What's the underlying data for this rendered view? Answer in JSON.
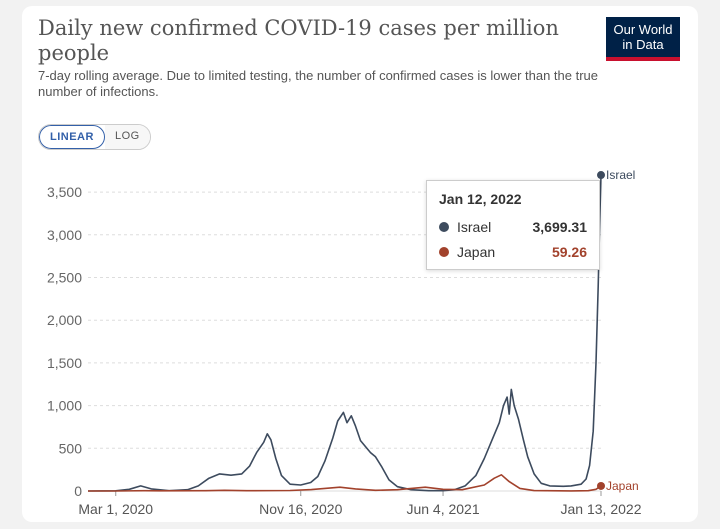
{
  "header": {
    "title": "Daily new confirmed COVID-19 cases per million people",
    "subtitle": "7-day rolling average. Due to limited testing, the number of confirmed cases is lower than the true number of infections.",
    "logo_line1": "Our World",
    "logo_line2": "in Data"
  },
  "scale_toggle": {
    "linear_label": "LINEAR",
    "log_label": "LOG",
    "selected": "LINEAR"
  },
  "tooltip": {
    "date": "Jan 12, 2022",
    "rows": [
      {
        "name": "Israel",
        "value": "3,699.31",
        "color": "#3d4b5e"
      },
      {
        "name": "Japan",
        "value": "59.26",
        "color": "#a2422c"
      }
    ]
  },
  "colors": {
    "israel": "#3d4b5e",
    "japan": "#a2422c",
    "grid": "#dddddd",
    "axis_text": "#666666",
    "logo_bg": "#002147",
    "logo_accent": "#c8102e"
  },
  "chart_data": {
    "type": "line",
    "title": "Daily new confirmed COVID-19 cases per million people",
    "xlabel": "",
    "ylabel": "",
    "x_ticks": [
      "Mar 1, 2020",
      "Nov 16, 2020",
      "Jun 4, 2021",
      "Jan 13, 2022"
    ],
    "y_ticks": [
      0,
      500,
      1000,
      1500,
      2000,
      2500,
      3000,
      3500
    ],
    "y_tick_labels": [
      "0",
      "500",
      "1,000",
      "1,500",
      "2,000",
      "2,500",
      "3,000",
      "3,500"
    ],
    "ylim": [
      0,
      3700
    ],
    "xlim": [
      "2020-01-22",
      "2022-01-12"
    ],
    "grid": true,
    "legend": "end-labels",
    "series": [
      {
        "name": "Israel",
        "color": "#3d4b5e",
        "points": [
          [
            "2020-01-22",
            0
          ],
          [
            "2020-03-01",
            2
          ],
          [
            "2020-03-20",
            20
          ],
          [
            "2020-04-05",
            60
          ],
          [
            "2020-04-20",
            25
          ],
          [
            "2020-05-15",
            3
          ],
          [
            "2020-06-10",
            15
          ],
          [
            "2020-06-25",
            60
          ],
          [
            "2020-07-10",
            150
          ],
          [
            "2020-07-25",
            200
          ],
          [
            "2020-08-10",
            185
          ],
          [
            "2020-08-25",
            200
          ],
          [
            "2020-09-05",
            290
          ],
          [
            "2020-09-15",
            450
          ],
          [
            "2020-09-25",
            570
          ],
          [
            "2020-09-30",
            670
          ],
          [
            "2020-10-05",
            600
          ],
          [
            "2020-10-12",
            380
          ],
          [
            "2020-10-20",
            180
          ],
          [
            "2020-11-01",
            80
          ],
          [
            "2020-11-16",
            70
          ],
          [
            "2020-11-30",
            100
          ],
          [
            "2020-12-10",
            170
          ],
          [
            "2020-12-20",
            350
          ],
          [
            "2020-12-31",
            620
          ],
          [
            "2021-01-07",
            820
          ],
          [
            "2021-01-15",
            920
          ],
          [
            "2021-01-20",
            800
          ],
          [
            "2021-01-26",
            880
          ],
          [
            "2021-02-01",
            760
          ],
          [
            "2021-02-08",
            590
          ],
          [
            "2021-02-15",
            520
          ],
          [
            "2021-02-22",
            450
          ],
          [
            "2021-03-01",
            400
          ],
          [
            "2021-03-10",
            280
          ],
          [
            "2021-03-20",
            130
          ],
          [
            "2021-04-01",
            50
          ],
          [
            "2021-04-20",
            15
          ],
          [
            "2021-05-15",
            3
          ],
          [
            "2021-06-04",
            3
          ],
          [
            "2021-06-20",
            15
          ],
          [
            "2021-07-05",
            60
          ],
          [
            "2021-07-20",
            180
          ],
          [
            "2021-08-01",
            380
          ],
          [
            "2021-08-12",
            600
          ],
          [
            "2021-08-22",
            800
          ],
          [
            "2021-08-28",
            1000
          ],
          [
            "2021-09-02",
            1100
          ],
          [
            "2021-09-05",
            900
          ],
          [
            "2021-09-08",
            1190
          ],
          [
            "2021-09-12",
            1000
          ],
          [
            "2021-09-18",
            840
          ],
          [
            "2021-09-25",
            600
          ],
          [
            "2021-10-01",
            400
          ],
          [
            "2021-10-10",
            200
          ],
          [
            "2021-10-20",
            90
          ],
          [
            "2021-11-01",
            60
          ],
          [
            "2021-11-20",
            55
          ],
          [
            "2021-12-01",
            60
          ],
          [
            "2021-12-15",
            80
          ],
          [
            "2021-12-22",
            140
          ],
          [
            "2021-12-27",
            300
          ],
          [
            "2022-01-01",
            700
          ],
          [
            "2022-01-05",
            1500
          ],
          [
            "2022-01-08",
            2400
          ],
          [
            "2022-01-10",
            3100
          ],
          [
            "2022-01-12",
            3699.31
          ]
        ]
      },
      {
        "name": "Japan",
        "color": "#a2422c",
        "points": [
          [
            "2020-01-22",
            0
          ],
          [
            "2020-03-01",
            0
          ],
          [
            "2020-04-10",
            4
          ],
          [
            "2020-05-01",
            2
          ],
          [
            "2020-07-05",
            3
          ],
          [
            "2020-08-01",
            8
          ],
          [
            "2020-09-01",
            4
          ],
          [
            "2020-11-01",
            6
          ],
          [
            "2020-12-01",
            16
          ],
          [
            "2021-01-10",
            45
          ],
          [
            "2021-02-01",
            25
          ],
          [
            "2021-03-01",
            8
          ],
          [
            "2021-04-01",
            15
          ],
          [
            "2021-05-10",
            45
          ],
          [
            "2021-06-04",
            20
          ],
          [
            "2021-07-01",
            15
          ],
          [
            "2021-08-01",
            70
          ],
          [
            "2021-08-15",
            150
          ],
          [
            "2021-08-25",
            190
          ],
          [
            "2021-09-05",
            110
          ],
          [
            "2021-09-20",
            30
          ],
          [
            "2021-10-10",
            5
          ],
          [
            "2021-12-01",
            1
          ],
          [
            "2021-12-25",
            3
          ],
          [
            "2022-01-05",
            20
          ],
          [
            "2022-01-12",
            59.26
          ]
        ]
      }
    ]
  }
}
